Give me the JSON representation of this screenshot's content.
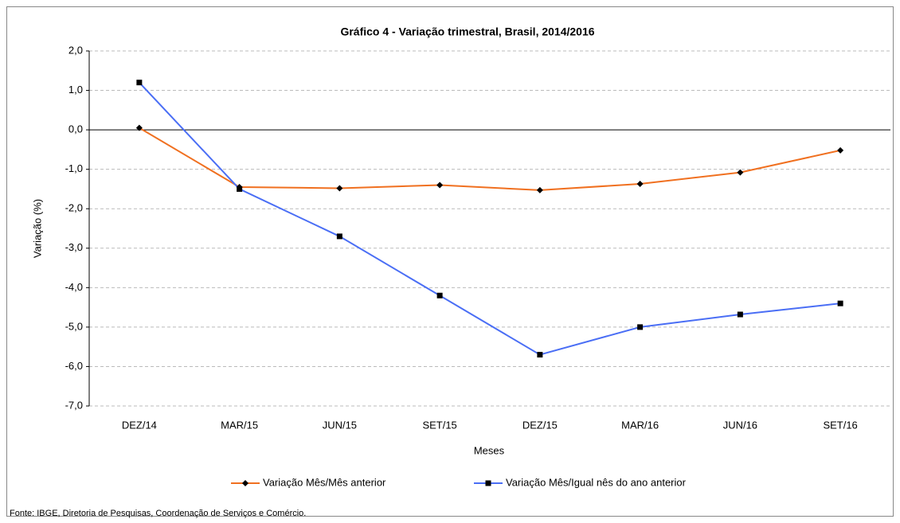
{
  "chart_data": {
    "type": "line",
    "title": "Gráfico 4 - Variação trimestral, Brasil, 2014/2016",
    "y_label": "Variação (%)",
    "x_label": "Meses",
    "source": "Fonte: IBGE, Diretoria de Pesquisas, Coordenação de Serviços e Comércio.",
    "categories": [
      "DEZ/14",
      "MAR/15",
      "JUN/15",
      "SET/15",
      "DEZ/15",
      "MAR/16",
      "JUN/16",
      "SET/16"
    ],
    "series": [
      {
        "name": "Variação Mês/Mês anterior",
        "color": "#f07020",
        "marker": "diamond",
        "values": [
          0.05,
          -1.45,
          -1.48,
          -1.4,
          -1.53,
          -1.37,
          -1.08,
          -0.52
        ]
      },
      {
        "name": "Variação Mês/Igual nês do ano anterior",
        "color": "#4a6ef5",
        "marker": "square",
        "values": [
          1.2,
          -1.5,
          -2.7,
          -4.2,
          -5.7,
          -5.0,
          -4.68,
          -4.4
        ]
      }
    ],
    "ylim": [
      -7,
      2
    ],
    "yticks": [
      {
        "value": 2,
        "label": "2,0"
      },
      {
        "value": 1,
        "label": "1,0"
      },
      {
        "value": 0,
        "label": "0,0"
      },
      {
        "value": -1,
        "label": "-1,0"
      },
      {
        "value": -2,
        "label": "-2,0"
      },
      {
        "value": -3,
        "label": "-3,0"
      },
      {
        "value": -4,
        "label": "-4,0"
      },
      {
        "value": -5,
        "label": "-5,0"
      },
      {
        "value": -6,
        "label": "-6,0"
      },
      {
        "value": -7,
        "label": "-7,0"
      }
    ],
    "grid": true
  }
}
